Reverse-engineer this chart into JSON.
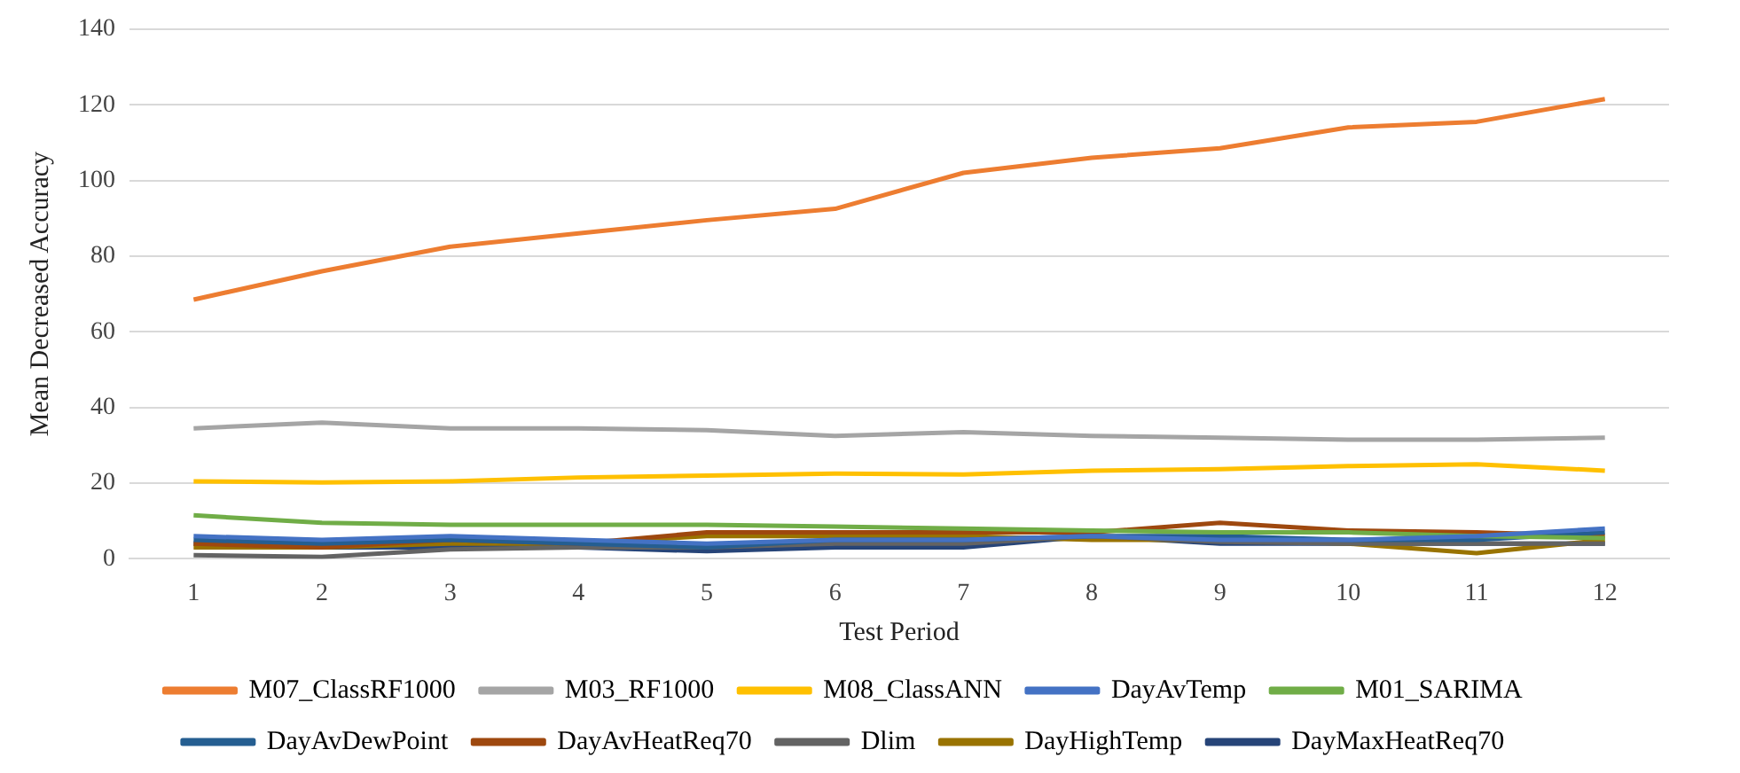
{
  "chart_data": {
    "type": "line",
    "xlabel": "Test Period",
    "ylabel": "Mean Decreased Accuracy",
    "x": [
      1,
      2,
      3,
      4,
      5,
      6,
      7,
      8,
      9,
      10,
      11,
      12
    ],
    "xlim": [
      0.5,
      12.5
    ],
    "xticks": [
      1,
      2,
      3,
      4,
      5,
      6,
      7,
      8,
      9,
      10,
      11,
      12
    ],
    "ylim": [
      0,
      140
    ],
    "yticks": [
      0,
      20,
      40,
      60,
      80,
      100,
      120,
      140
    ],
    "grid": "y",
    "legend": "bottom",
    "marker": "none",
    "series": [
      {
        "name": "M07_ClassRF1000",
        "color": "#ed7d31",
        "values": [
          68.5,
          76,
          82.5,
          86,
          89.5,
          92.5,
          102,
          106,
          108.5,
          114,
          115.5,
          121.5
        ]
      },
      {
        "name": "M03_RF1000",
        "color": "#a5a5a5",
        "values": [
          34.5,
          36,
          34.5,
          34.5,
          34,
          32.5,
          33.5,
          32.5,
          32,
          31.5,
          31.5,
          32
        ]
      },
      {
        "name": "M08_ClassANN",
        "color": "#ffc000",
        "values": [
          20.5,
          20.2,
          20.5,
          21.5,
          22,
          22.5,
          22.3,
          23.3,
          23.7,
          24.5,
          25,
          23.3
        ]
      },
      {
        "name": "DayAvTemp",
        "color": "#4472c4",
        "values": [
          6,
          5,
          6,
          5,
          4,
          5,
          5,
          6,
          5,
          5,
          6,
          8
        ]
      },
      {
        "name": "M01_SARIMA",
        "color": "#70ad47",
        "values": [
          11.5,
          9.5,
          9,
          9,
          9,
          8.5,
          8,
          7.5,
          7,
          7,
          6,
          5.5
        ]
      },
      {
        "name": "DayAvDewPoint",
        "color": "#255e91",
        "values": [
          5,
          4,
          5,
          4,
          3,
          5,
          5,
          6,
          6,
          5,
          5,
          7
        ]
      },
      {
        "name": "DayAvHeatReq70",
        "color": "#9e480e",
        "values": [
          4,
          3,
          5,
          4,
          7,
          7,
          7,
          7,
          9.5,
          7.5,
          7,
          6
        ]
      },
      {
        "name": "Dlim",
        "color": "#636363",
        "values": [
          1,
          0.5,
          2.5,
          3,
          3,
          4,
          4,
          6,
          4.5,
          4,
          4,
          4
        ]
      },
      {
        "name": "DayHighTemp",
        "color": "#997300",
        "values": [
          3,
          3,
          4,
          4,
          6,
          6,
          6,
          5,
          5,
          4,
          1.5,
          5
        ]
      },
      {
        "name": "DayMaxHeatReq70",
        "color": "#264478",
        "values": [
          4,
          3,
          3,
          3,
          2,
          3,
          3,
          6,
          4,
          4,
          4,
          4
        ]
      }
    ]
  }
}
